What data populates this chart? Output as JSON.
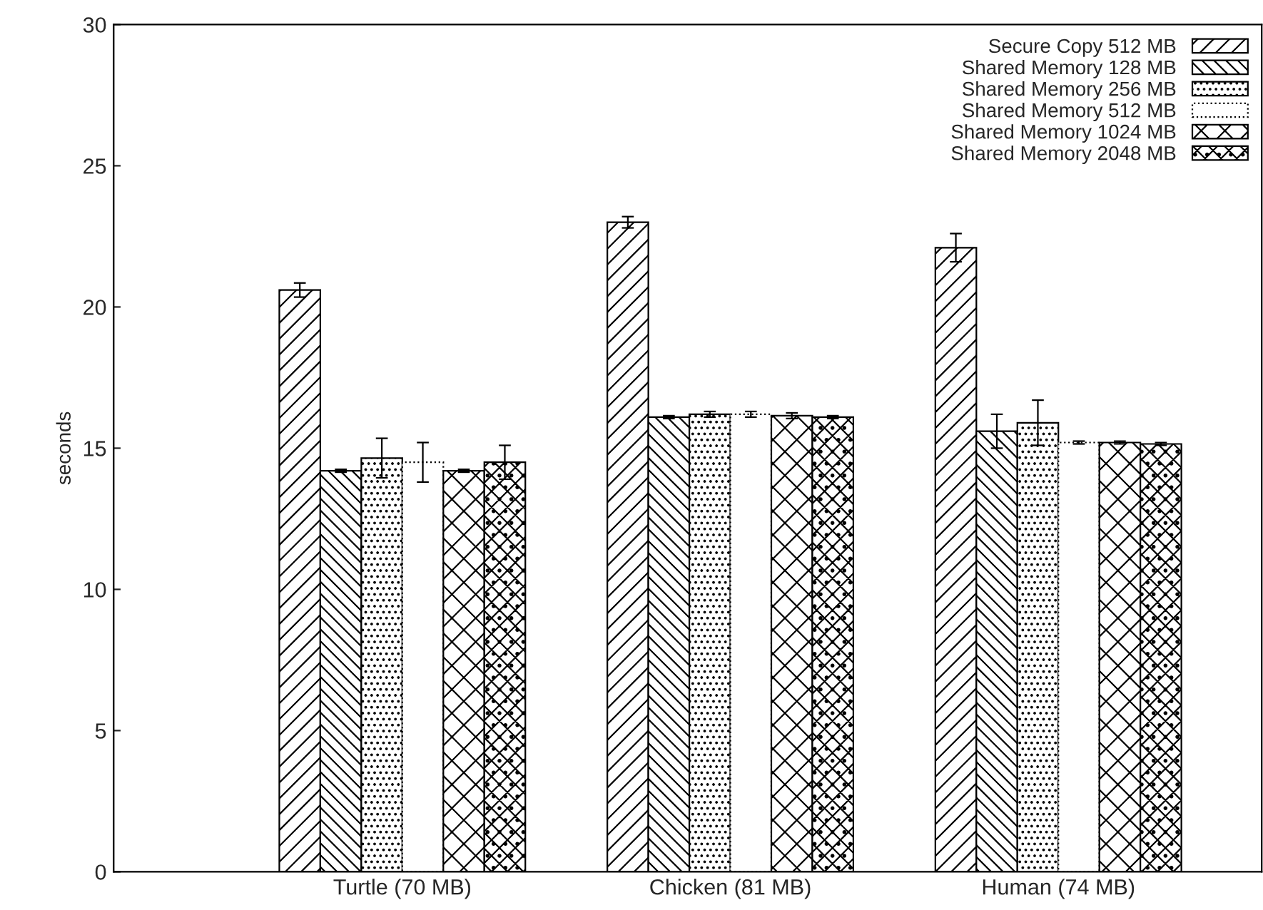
{
  "chart_data": {
    "type": "bar",
    "ylabel": "seconds",
    "categories": [
      "Turtle (70 MB)",
      "Chicken (81 MB)",
      "Human (74 MB)"
    ],
    "series": [
      {
        "name": "Secure Copy 512 MB",
        "color": "#000000",
        "values": [
          20.6,
          23.0,
          22.1
        ],
        "errors": [
          0.25,
          0.2,
          0.5
        ]
      },
      {
        "name": "Shared Memory 128 MB",
        "color": "#000000",
        "values": [
          14.2,
          16.1,
          15.6
        ],
        "errors": [
          0.05,
          0.05,
          0.6
        ]
      },
      {
        "name": "Shared Memory 256 MB",
        "color": "#000000",
        "values": [
          14.65,
          16.2,
          15.9
        ],
        "errors": [
          0.7,
          0.1,
          0.8
        ]
      },
      {
        "name": "Shared Memory 512 MB",
        "color": "#000000",
        "values": [
          14.5,
          16.2,
          15.2
        ],
        "errors": [
          0.7,
          0.1,
          0.05
        ]
      },
      {
        "name": "Shared Memory 1024 MB",
        "color": "#000000",
        "values": [
          14.2,
          16.15,
          15.2
        ],
        "errors": [
          0.05,
          0.1,
          0.05
        ]
      },
      {
        "name": "Shared Memory 2048 MB",
        "color": "#000000",
        "values": [
          14.5,
          16.1,
          15.15
        ],
        "errors": [
          0.6,
          0.05,
          0.05
        ]
      }
    ],
    "ylim": [
      0,
      30
    ],
    "yticks": [
      0,
      5,
      10,
      15,
      20,
      25,
      30
    ],
    "grid": false,
    "legend": "top right"
  }
}
